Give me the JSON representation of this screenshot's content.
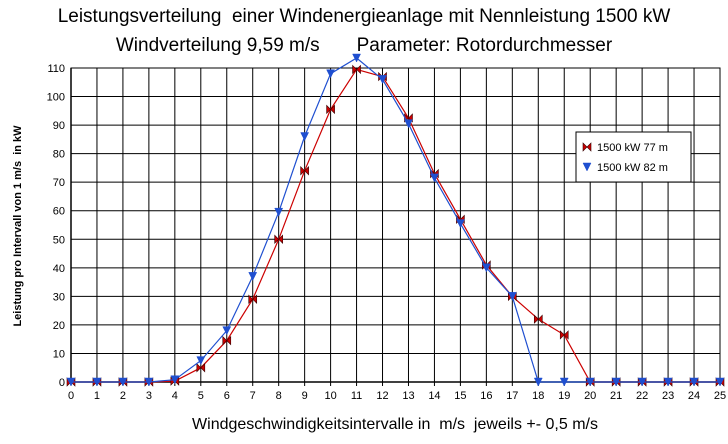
{
  "chart_data": {
    "type": "line",
    "title": "Leistungsverteilung  einer Windenergieanlage mit Nennleistung 1500 kW",
    "subtitle": "Windverteilung 9,59 m/s       Parameter: Rotordurchmesser",
    "xlabel": "Windgeschwindigkeitsintervalle in  m/s  jeweils +- 0,5 m/s",
    "ylabel": "Leistung pro Intervall von 1 m/s  in kW",
    "x": [
      0,
      1,
      2,
      3,
      4,
      5,
      6,
      7,
      8,
      9,
      10,
      11,
      12,
      13,
      14,
      15,
      16,
      17,
      18,
      19,
      20,
      21,
      22,
      23,
      24,
      25
    ],
    "xlim": [
      0,
      25
    ],
    "ylim": [
      0,
      110
    ],
    "yticks": [
      0,
      10,
      20,
      30,
      40,
      50,
      60,
      70,
      80,
      90,
      100,
      110
    ],
    "grid": true,
    "legend_position": "right",
    "series": [
      {
        "name": "1500 kW  77  m",
        "color": "#cc0000",
        "marker": "bowtie",
        "values": [
          0,
          0,
          0,
          0,
          0.3,
          5,
          14.5,
          29,
          50,
          74,
          95.5,
          109.5,
          107,
          92.5,
          73,
          57,
          41,
          30,
          22,
          16.5,
          0,
          0,
          0,
          0,
          0,
          0
        ]
      },
      {
        "name": "1500 kW  82  m",
        "color": "#1f4fd0",
        "marker": "triangle-down",
        "values": [
          0,
          0,
          0,
          0,
          0.8,
          7.5,
          18,
          37,
          59.5,
          86,
          108,
          113.5,
          106,
          90.5,
          71.5,
          55.5,
          40,
          30,
          0,
          0,
          0,
          0,
          0,
          0,
          0,
          0
        ]
      }
    ]
  }
}
